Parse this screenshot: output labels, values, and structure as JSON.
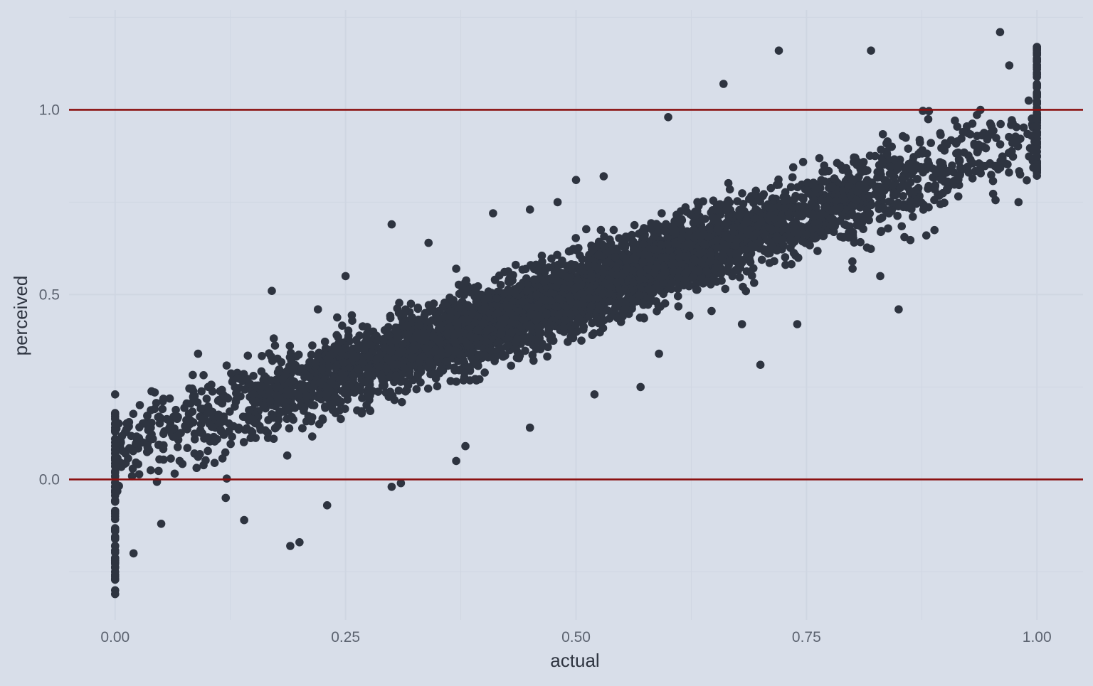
{
  "chart_data": {
    "type": "scatter",
    "title": "",
    "xlabel": "actual",
    "ylabel": "perceived",
    "xlim": [
      -0.05,
      1.05
    ],
    "ylim": [
      -0.38,
      1.27
    ],
    "x_ticks": [
      0.0,
      0.25,
      0.5,
      0.75,
      1.0
    ],
    "x_tick_labels": [
      "0.00",
      "0.25",
      "0.50",
      "0.75",
      "1.00"
    ],
    "y_ticks": [
      0.0,
      0.5,
      1.0
    ],
    "y_tick_labels": [
      "0.0",
      "0.5",
      "1.0"
    ],
    "reference_lines": [
      {
        "axis": "y",
        "value": 0.0,
        "color": "#8b1010"
      },
      {
        "axis": "y",
        "value": 1.0,
        "color": "#8b1010"
      }
    ],
    "grid": true,
    "legend": "none",
    "point_color": "#2e3440",
    "background_color": "#d8dee9",
    "grid_color": "#cfd6e2",
    "trend": {
      "slope": 0.85,
      "intercept": 0.08,
      "spread_sd": 0.075
    },
    "points": [
      [
        0.0,
        0.23
      ],
      [
        0.0,
        0.17
      ],
      [
        0.0,
        0.14
      ],
      [
        0.0,
        0.1
      ],
      [
        0.0,
        0.06
      ],
      [
        0.0,
        0.02
      ],
      [
        0.0,
        -0.02
      ],
      [
        0.0,
        -0.06
      ],
      [
        0.0,
        -0.1
      ],
      [
        0.0,
        -0.14
      ],
      [
        0.0,
        -0.18
      ],
      [
        0.0,
        -0.22
      ],
      [
        0.0,
        -0.25
      ],
      [
        0.0,
        -0.3
      ],
      [
        0.0,
        -0.31
      ],
      [
        0.02,
        -0.2
      ],
      [
        0.03,
        0.1
      ],
      [
        0.05,
        -0.12
      ],
      [
        0.07,
        0.05
      ],
      [
        0.09,
        0.34
      ],
      [
        0.12,
        -0.05
      ],
      [
        0.14,
        -0.11
      ],
      [
        0.15,
        0.28
      ],
      [
        0.17,
        0.51
      ],
      [
        0.19,
        -0.18
      ],
      [
        0.2,
        -0.17
      ],
      [
        0.22,
        0.46
      ],
      [
        0.23,
        -0.07
      ],
      [
        0.25,
        0.55
      ],
      [
        0.28,
        0.4
      ],
      [
        0.3,
        0.69
      ],
      [
        0.3,
        -0.02
      ],
      [
        0.31,
        -0.01
      ],
      [
        0.34,
        0.64
      ],
      [
        0.37,
        0.57
      ],
      [
        0.37,
        0.05
      ],
      [
        0.38,
        0.09
      ],
      [
        0.41,
        0.72
      ],
      [
        0.45,
        0.73
      ],
      [
        0.45,
        0.14
      ],
      [
        0.48,
        0.75
      ],
      [
        0.5,
        0.81
      ],
      [
        0.52,
        0.23
      ],
      [
        0.53,
        0.82
      ],
      [
        0.57,
        0.25
      ],
      [
        0.59,
        0.34
      ],
      [
        0.6,
        0.98
      ],
      [
        0.66,
        1.07
      ],
      [
        0.68,
        0.42
      ],
      [
        0.7,
        0.31
      ],
      [
        0.74,
        0.42
      ],
      [
        0.8,
        0.57
      ],
      [
        0.83,
        0.55
      ],
      [
        0.85,
        0.46
      ],
      [
        0.88,
        0.66
      ],
      [
        0.91,
        0.83
      ],
      [
        0.95,
        0.96
      ],
      [
        0.96,
        1.21
      ],
      [
        0.97,
        1.12
      ],
      [
        0.98,
        0.75
      ],
      [
        1.0,
        1.17
      ],
      [
        1.0,
        1.1
      ],
      [
        1.0,
        1.04
      ],
      [
        1.0,
        0.98
      ],
      [
        1.0,
        0.94
      ],
      [
        1.0,
        0.9
      ],
      [
        1.0,
        0.86
      ],
      [
        1.0,
        0.83
      ],
      [
        0.82,
        1.16
      ],
      [
        0.72,
        1.16
      ]
    ]
  }
}
